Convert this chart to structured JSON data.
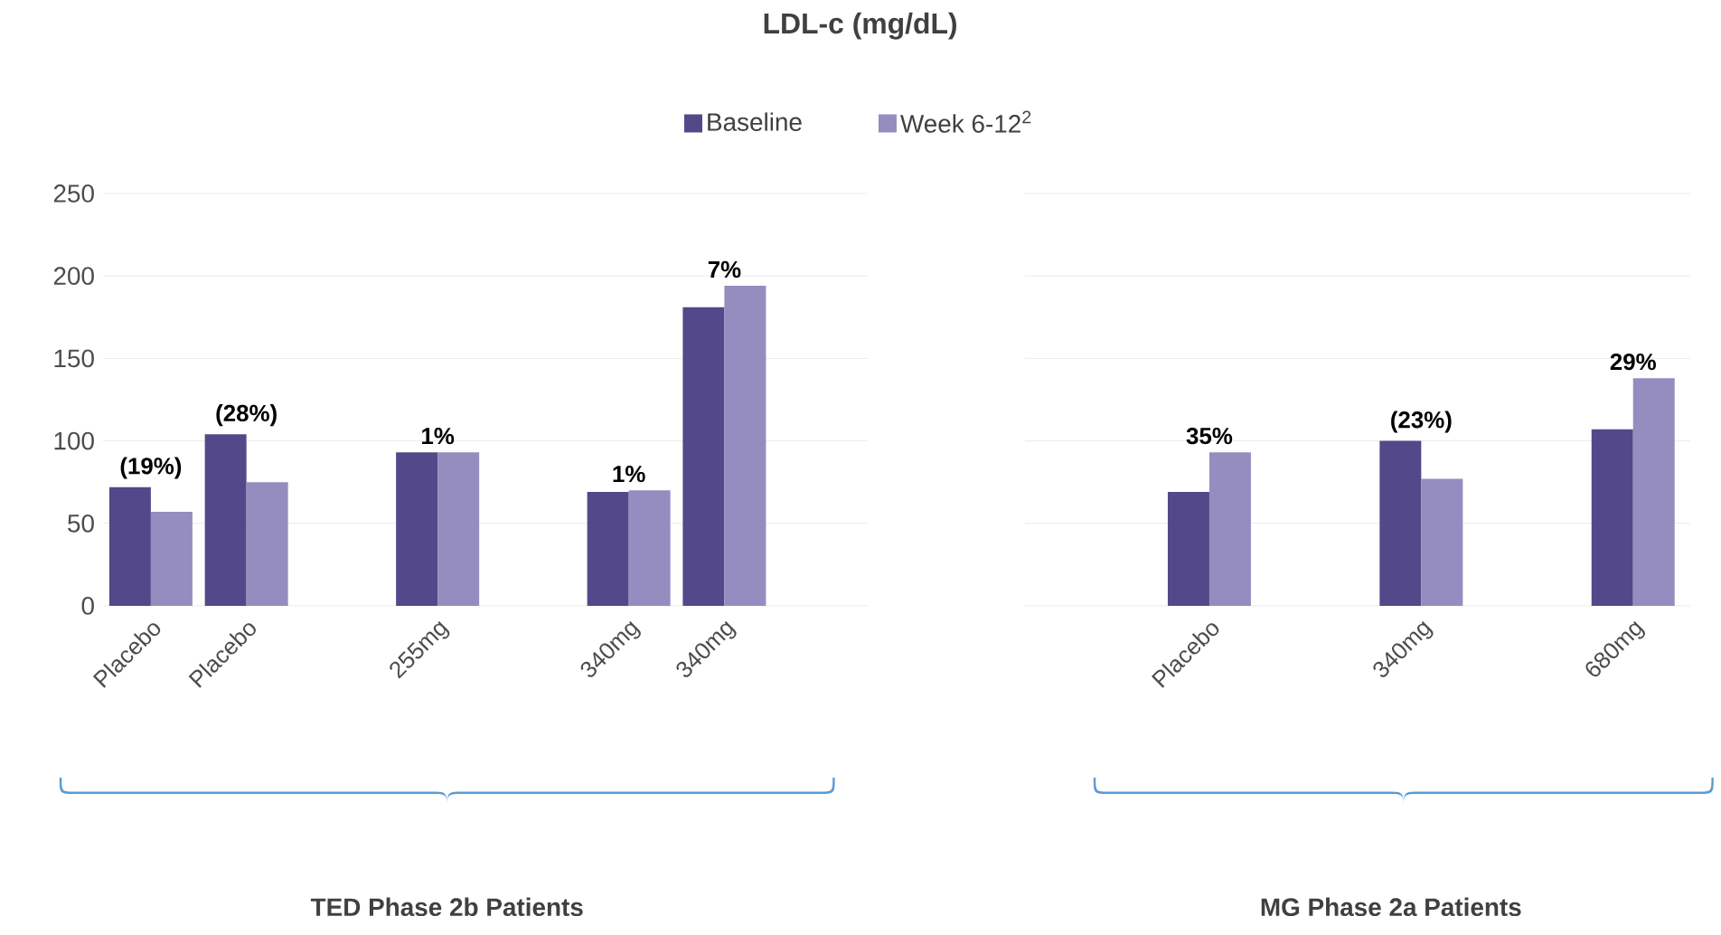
{
  "chart_data": [
    {
      "type": "bar",
      "title": "LDL-c (mg/dL)",
      "xlabel": "TED Phase 2b Patients",
      "categories": [
        "Placebo",
        "Placebo",
        null,
        "255mg",
        null,
        "340mg",
        "340mg",
        null
      ],
      "series": [
        {
          "name": "Baseline",
          "color": "#534889",
          "values": [
            72,
            104,
            null,
            93,
            null,
            69,
            181,
            null
          ]
        },
        {
          "name": "Week 6-12$^{2}$",
          "color": "#958dbf",
          "values": [
            57,
            75,
            null,
            93,
            null,
            70,
            194,
            null
          ]
        }
      ],
      "ylim": [
        0,
        250
      ],
      "yticks": [
        0,
        50,
        100,
        150,
        200,
        250
      ],
      "grid": "y",
      "legend": "top",
      "annotations": [
        "(19%)",
        "(28%)",
        "1%",
        "1%",
        "7%"
      ]
    },
    {
      "type": "bar",
      "xlabel": "MG Phase 2a Patients",
      "categories": [
        "Placebo",
        "340mg",
        "680mg"
      ],
      "series": [
        {
          "color": "#534889",
          "values": [
            69,
            100,
            107
          ]
        },
        {
          "color": "#958dbf",
          "values": [
            93,
            77,
            138
          ]
        }
      ],
      "ylim": [
        0,
        250
      ],
      "yticks": [
        0,
        50,
        100,
        150,
        200,
        250
      ],
      "grid": "y",
      "tick_labels": "x",
      "annotations": [
        "35%",
        "(23%)",
        "29%"
      ]
    }
  ]
}
